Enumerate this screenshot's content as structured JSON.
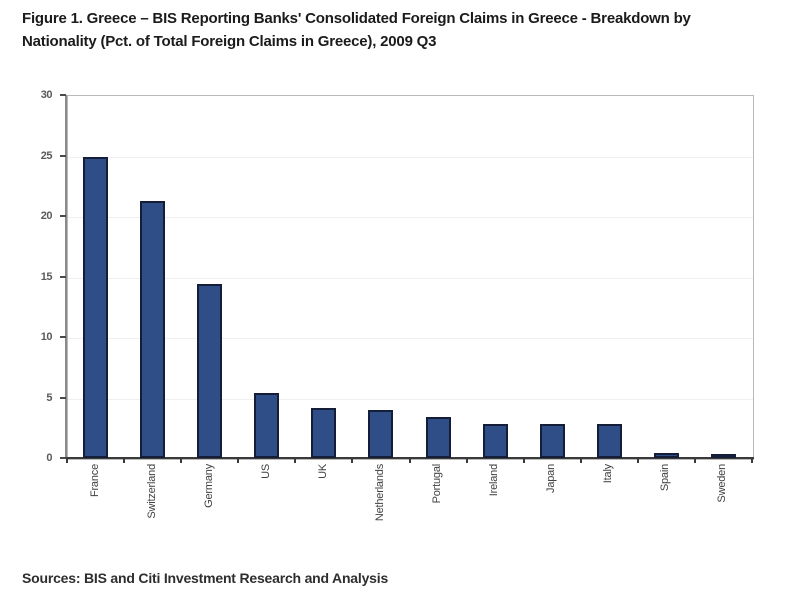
{
  "figure": {
    "title": "Figure 1. Greece – BIS Reporting Banks' Consolidated Foreign Claims in Greece - Breakdown by Nationality (Pct. of Total Foreign Claims in Greece), 2009 Q3",
    "source": "Sources: BIS and Citi Investment Research and Analysis"
  },
  "colors": {
    "bar_fill": "#2F4E87",
    "bar_border": "#141E38",
    "plot_frame": "#B9B9B9",
    "y_axis": "#8A8A8A",
    "x_axis": "#3A3A3A",
    "tick_label": "#5A5A5A",
    "category_label": "#414141",
    "title_text": "#1B1B1B"
  },
  "chart_data": {
    "type": "bar",
    "title": "Figure 1. Greece – BIS Reporting Banks' Consolidated Foreign Claims in Greece - Breakdown by Nationality (Pct. of Total Foreign Claims in Greece), 2009 Q3",
    "categories": [
      "France",
      "Switzerland",
      "Germany",
      "US",
      "UK",
      "Netherlands",
      "Portugal",
      "Ireland",
      "Japan",
      "Italy",
      "Spain",
      "Sweden"
    ],
    "values": [
      24.9,
      21.2,
      14.4,
      5.4,
      4.1,
      4.0,
      3.4,
      2.8,
      2.8,
      2.8,
      0.4,
      0.3
    ],
    "xlabel": "",
    "ylabel": "",
    "ylim": [
      0,
      30
    ],
    "yticks": [
      0,
      5,
      10,
      15,
      20,
      25,
      30
    ],
    "grid": false,
    "legend": "none",
    "unit": "Pct. of Total Foreign Claims in Greece"
  }
}
